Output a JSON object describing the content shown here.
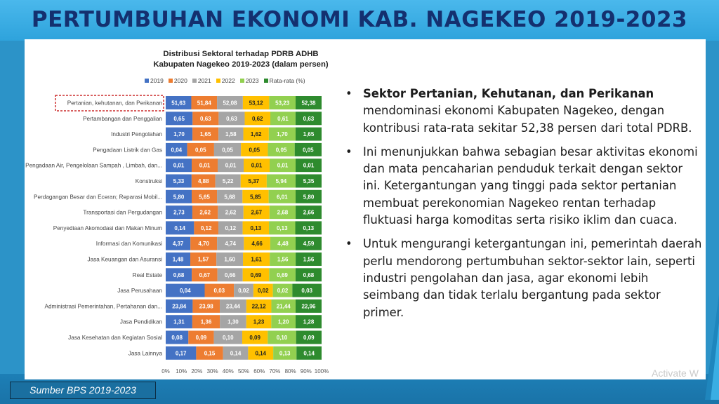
{
  "title": "PERTUMBUHAN EKONOMI KAB. NAGEKEO 2019-2023",
  "source": "Sumber BPS 2019-2023",
  "watermark": "Activate W",
  "chart_data": {
    "type": "bar",
    "orientation": "horizontal",
    "stacked": "percent",
    "title": "Distribusi Sektoral terhadap PDRB ADHB Kabupaten Nagekeo 2019-2023 (dalam persen)",
    "title_lines": [
      "Distribusi Sektoral terhadap PDRB ADHB",
      "Kabupaten Nagekeo 2019-2023 (dalam persen)"
    ],
    "legend_position": "top",
    "highlighted_category": 0,
    "x_ticks": [
      "0%",
      "10%",
      "20%",
      "30%",
      "40%",
      "50%",
      "60%",
      "70%",
      "80%",
      "90%",
      "100%"
    ],
    "xlim": [
      0,
      100
    ],
    "categories": [
      "Pertanian, kehutanan, dan Perikanan",
      "Pertambangan dan Penggalian",
      "Industri Pengolahan",
      "Pengadaan Listrik dan Gas",
      "Pengadaan Air, Pengelolaan Sampah , Limbah, dan...",
      "Konstruksi",
      "Perdagangan Besar dan Eceran; Reparasi Mobil...",
      "Transportasi dan Pergudangan",
      "Penyediaan Akomodasi dan Makan Minum",
      "Informasi dan Komunikasi",
      "Jasa Keuangan dan Asuransi",
      "Real Estate",
      "Jasa Perusahaan",
      "Administrasi Pemerintahan, Pertahanan dan...",
      "Jasa Pendidikan",
      "Jasa Kesehatan dan Kegiatan Sosial",
      "Jasa Lainnya"
    ],
    "series": [
      {
        "name": "2019",
        "color": "#4472c4",
        "values": [
          "51,63",
          "0,65",
          "1,70",
          "0,04",
          "0,01",
          "5,33",
          "5,80",
          "2,73",
          "0,14",
          "4,37",
          "1,48",
          "0,68",
          "0,04",
          "23,84",
          "1,31",
          "0,08",
          "0,17"
        ]
      },
      {
        "name": "2020",
        "color": "#ed7d31",
        "values": [
          "51,84",
          "0,63",
          "1,65",
          "0,05",
          "0,01",
          "4,88",
          "5,65",
          "2,62",
          "0,12",
          "4,70",
          "1,57",
          "0,67",
          "0,03",
          "23,98",
          "1,36",
          "0,09",
          "0,15"
        ]
      },
      {
        "name": "2021",
        "color": "#a5a5a5",
        "values": [
          "52,08",
          "0,63",
          "1,58",
          "0,05",
          "0,01",
          "5,22",
          "5,68",
          "2,62",
          "0,12",
          "4,74",
          "1,60",
          "0,66",
          "0,02",
          "23,44",
          "1,30",
          "0,10",
          "0,14"
        ]
      },
      {
        "name": "2022",
        "color": "#ffc000",
        "values": [
          "53,12",
          "0,62",
          "1,62",
          "0,05",
          "0,01",
          "5,37",
          "5,85",
          "2,67",
          "0,13",
          "4,66",
          "1,61",
          "0,69",
          "0,02",
          "22,12",
          "1,23",
          "0,09",
          "0,14"
        ]
      },
      {
        "name": "2023",
        "color": "#92d050",
        "values": [
          "53,23",
          "0,61",
          "1,70",
          "0,05",
          "0,01",
          "5,94",
          "6,01",
          "2,68",
          "0,13",
          "4,48",
          "1,56",
          "0,69",
          "0,02",
          "21,44",
          "1,20",
          "0,10",
          "0,13"
        ]
      },
      {
        "name": "Rata-rata (%)",
        "color": "#2e8b2e",
        "values": [
          "52,38",
          "0,63",
          "1,65",
          "0,05",
          "0,01",
          "5,35",
          "5,80",
          "2,66",
          "0,13",
          "4,59",
          "1,56",
          "0,68",
          "0,03",
          "22,96",
          "1,28",
          "0,09",
          "0,14"
        ]
      }
    ]
  },
  "bullets": [
    {
      "bold": "Sektor Pertanian, Kehutanan, dan Perikanan",
      "text": " mendominasi ekonomi Kabupaten Nagekeo, dengan kontribusi rata-rata sekitar 52,38 persen dari total PDRB."
    },
    {
      "bold": "",
      "text": "Ini menunjukkan bahwa sebagian besar aktivitas ekonomi dan mata pencaharian penduduk terkait dengan sektor ini. Ketergantungan yang tinggi pada sektor pertanian membuat perekonomian Nagekeo rentan terhadap fluktuasi harga komoditas serta risiko iklim dan cuaca."
    },
    {
      "bold": "",
      "text": "Untuk mengurangi ketergantungan ini, pemerintah daerah perlu mendorong pertumbuhan sektor-sektor lain, seperti industri pengolahan dan jasa, agar ekonomi lebih seimbang dan tidak terlalu bergantung pada sektor primer."
    }
  ],
  "bullet_char": "•"
}
